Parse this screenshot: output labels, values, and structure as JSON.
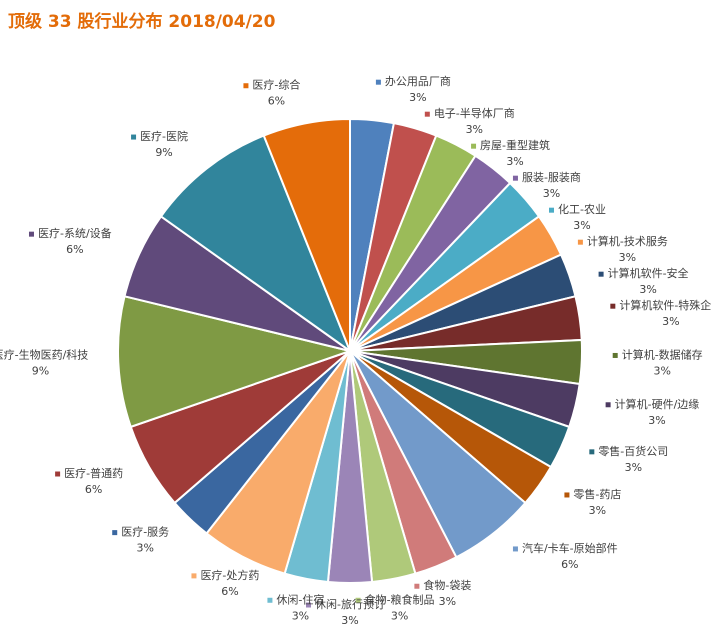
{
  "chart_data": {
    "type": "pie",
    "title": "顶级 33 股行业分布 2018/04/20",
    "categories": [
      "办公用品厂商",
      "电子-半导体厂商",
      "房屋-重型建筑",
      "服装-服装商",
      "化工-农业",
      "计算机-技术服务",
      "计算机软件-安全",
      "计算机软件-特殊企业",
      "计算机-数据储存",
      "计算机-硬件/边缘",
      "零售-百货公司",
      "零售-药店",
      "汽车/卡车-原始部件",
      "食物-袋装",
      "食物-粮食制品",
      "休闲-旅行预订",
      "休闲-住宿",
      "医疗-处方药",
      "医疗-服务",
      "医疗-普通药",
      "医疗-生物医药/科技",
      "医疗-系统/设备",
      "医疗-医院",
      "医疗-综合"
    ],
    "values": [
      3,
      3,
      3,
      3,
      3,
      3,
      3,
      3,
      3,
      3,
      3,
      3,
      6,
      3,
      3,
      3,
      3,
      6,
      3,
      6,
      9,
      6,
      9,
      6
    ],
    "value_labels": [
      "3%",
      "3%",
      "3%",
      "3%",
      "3%",
      "3%",
      "3%",
      "3%",
      "3%",
      "3%",
      "3%",
      "3%",
      "6%",
      "3%",
      "3%",
      "3%",
      "3%",
      "6%",
      "3%",
      "6%",
      "9%",
      "6%",
      "9%",
      "6%"
    ],
    "colors": [
      "#4f81bd",
      "#c0504d",
      "#9bbb59",
      "#8064a2",
      "#4bacc6",
      "#f79646",
      "#2c4d75",
      "#772c2a",
      "#5f7530",
      "#4d3b62",
      "#276a7c",
      "#b65708",
      "#729aca",
      "#d07b7a",
      "#afc97a",
      "#9b85b7",
      "#6fbdd1",
      "#f9ab6b",
      "#3a67a0",
      "#9f3b38",
      "#7f9a44",
      "#604a7b",
      "#31859c",
      "#e46c0a"
    ]
  }
}
